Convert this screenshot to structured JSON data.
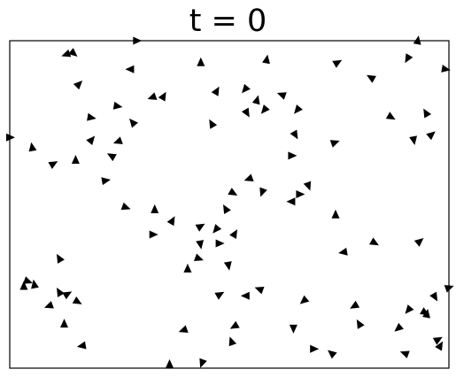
{
  "chart_data": {
    "type": "scatter",
    "title": "t = 0",
    "xlabel": "",
    "ylabel": "",
    "xlim": [
      0,
      1
    ],
    "ylim": [
      0,
      1
    ],
    "ticks": "none",
    "grid": false,
    "marker": "triangle",
    "marker_color": "#000000",
    "frame_color": "#000000",
    "points": [
      {
        "x": 0.129,
        "y": 0.958,
        "angle": 200
      },
      {
        "x": 0.145,
        "y": 0.962,
        "angle": 320
      },
      {
        "x": 0.289,
        "y": 1.0,
        "angle": 0
      },
      {
        "x": 0.435,
        "y": 0.933,
        "angle": 90
      },
      {
        "x": 0.585,
        "y": 0.942,
        "angle": 80
      },
      {
        "x": 0.746,
        "y": 0.933,
        "angle": 30
      },
      {
        "x": 0.929,
        "y": 1.0,
        "angle": 80
      },
      {
        "x": 0.906,
        "y": 0.946,
        "angle": 240
      },
      {
        "x": 0.992,
        "y": 0.913,
        "angle": 350
      },
      {
        "x": 0.823,
        "y": 0.887,
        "angle": 150
      },
      {
        "x": 0.157,
        "y": 0.867,
        "angle": 45
      },
      {
        "x": 0.275,
        "y": 0.913,
        "angle": 180
      },
      {
        "x": 0.325,
        "y": 0.827,
        "angle": 200
      },
      {
        "x": 0.35,
        "y": 0.83,
        "angle": 60
      },
      {
        "x": 0.471,
        "y": 0.846,
        "angle": 60
      },
      {
        "x": 0.536,
        "y": 0.852,
        "angle": 230
      },
      {
        "x": 0.563,
        "y": 0.818,
        "angle": 75
      },
      {
        "x": 0.62,
        "y": 0.835,
        "angle": 160
      },
      {
        "x": 0.54,
        "y": 0.78,
        "angle": 300
      },
      {
        "x": 0.58,
        "y": 0.789,
        "angle": 230
      },
      {
        "x": 0.655,
        "y": 0.789,
        "angle": 230
      },
      {
        "x": 0.245,
        "y": 0.8,
        "angle": 350
      },
      {
        "x": 0.185,
        "y": 0.765,
        "angle": 350
      },
      {
        "x": 0.46,
        "y": 0.746,
        "angle": 120
      },
      {
        "x": 0.868,
        "y": 0.767,
        "angle": 330
      },
      {
        "x": 0.948,
        "y": 0.779,
        "angle": 120
      },
      {
        "x": 0.96,
        "y": 0.713,
        "angle": 40
      },
      {
        "x": 0.92,
        "y": 0.697,
        "angle": 280
      },
      {
        "x": 0.186,
        "y": 0.697,
        "angle": 50
      },
      {
        "x": 0.247,
        "y": 0.692,
        "angle": 200
      },
      {
        "x": 0.051,
        "y": 0.674,
        "angle": 100
      },
      {
        "x": 0.232,
        "y": 0.648,
        "angle": 150
      },
      {
        "x": 0.15,
        "y": 0.635,
        "angle": 90
      },
      {
        "x": 0.099,
        "y": 0.624,
        "angle": 30
      },
      {
        "x": 0.65,
        "y": 0.713,
        "angle": 300
      },
      {
        "x": 0.74,
        "y": 0.689,
        "angle": 20
      },
      {
        "x": 0.642,
        "y": 0.649,
        "angle": 0
      },
      {
        "x": 0.218,
        "y": 0.573,
        "angle": 10
      },
      {
        "x": 0.545,
        "y": 0.578,
        "angle": 200
      },
      {
        "x": 0.575,
        "y": 0.538,
        "angle": 250
      },
      {
        "x": 0.508,
        "y": 0.535,
        "angle": 330
      },
      {
        "x": 0.68,
        "y": 0.557,
        "angle": 290
      },
      {
        "x": 0.642,
        "y": 0.509,
        "angle": 180
      },
      {
        "x": 0.264,
        "y": 0.491,
        "angle": 340
      },
      {
        "x": 0.33,
        "y": 0.484,
        "angle": 90
      },
      {
        "x": 0.326,
        "y": 0.408,
        "angle": 0
      },
      {
        "x": 0.492,
        "y": 0.486,
        "angle": 120
      },
      {
        "x": 0.434,
        "y": 0.433,
        "angle": 30
      },
      {
        "x": 0.47,
        "y": 0.424,
        "angle": 230
      },
      {
        "x": 0.512,
        "y": 0.41,
        "angle": 60
      },
      {
        "x": 0.434,
        "y": 0.379,
        "angle": 280
      },
      {
        "x": 0.477,
        "y": 0.381,
        "angle": 0
      },
      {
        "x": 0.742,
        "y": 0.468,
        "angle": 90
      },
      {
        "x": 0.933,
        "y": 0.387,
        "angle": 40
      },
      {
        "x": 0.83,
        "y": 0.383,
        "angle": 330
      },
      {
        "x": 0.76,
        "y": 0.354,
        "angle": 190
      },
      {
        "x": 0.43,
        "y": 0.335,
        "angle": 340
      },
      {
        "x": 0.405,
        "y": 0.303,
        "angle": 90
      },
      {
        "x": 0.498,
        "y": 0.314,
        "angle": 280
      },
      {
        "x": 0.113,
        "y": 0.335,
        "angle": 120
      },
      {
        "x": 0.041,
        "y": 0.265,
        "angle": 340
      },
      {
        "x": 0.032,
        "y": 0.25,
        "angle": 90
      },
      {
        "x": 0.056,
        "y": 0.255,
        "angle": 100
      },
      {
        "x": 0.113,
        "y": 0.232,
        "angle": 120
      },
      {
        "x": 0.131,
        "y": 0.226,
        "angle": 30
      },
      {
        "x": 0.154,
        "y": 0.203,
        "angle": 330
      },
      {
        "x": 0.09,
        "y": 0.19,
        "angle": 200
      },
      {
        "x": 0.124,
        "y": 0.135,
        "angle": 90
      },
      {
        "x": 0.478,
        "y": 0.225,
        "angle": 30
      },
      {
        "x": 0.538,
        "y": 0.221,
        "angle": 180
      },
      {
        "x": 0.569,
        "y": 0.241,
        "angle": 160
      },
      {
        "x": 0.67,
        "y": 0.206,
        "angle": 220
      },
      {
        "x": 0.785,
        "y": 0.19,
        "angle": 210
      },
      {
        "x": 0.796,
        "y": 0.135,
        "angle": 120
      },
      {
        "x": 0.908,
        "y": 0.178,
        "angle": 230
      },
      {
        "x": 0.945,
        "y": 0.17,
        "angle": 330
      },
      {
        "x": 0.968,
        "y": 0.218,
        "angle": 300
      },
      {
        "x": 0.95,
        "y": 0.165,
        "angle": 80
      },
      {
        "x": 1.0,
        "y": 0.246,
        "angle": 20
      },
      {
        "x": 0.396,
        "y": 0.116,
        "angle": 200
      },
      {
        "x": 0.512,
        "y": 0.128,
        "angle": 210
      },
      {
        "x": 0.505,
        "y": 0.081,
        "angle": 110
      },
      {
        "x": 0.646,
        "y": 0.122,
        "angle": 270
      },
      {
        "x": 0.885,
        "y": 0.122,
        "angle": 220
      },
      {
        "x": 0.975,
        "y": 0.087,
        "angle": 30
      },
      {
        "x": 0.98,
        "y": 0.068,
        "angle": 60
      },
      {
        "x": 0.165,
        "y": 0.068,
        "angle": 190
      },
      {
        "x": 0.692,
        "y": 0.059,
        "angle": 0
      },
      {
        "x": 0.733,
        "y": 0.045,
        "angle": 140
      },
      {
        "x": 0.9,
        "y": 0.045,
        "angle": 160
      },
      {
        "x": 0.364,
        "y": 0.011,
        "angle": 90
      },
      {
        "x": 0.438,
        "y": 0.016,
        "angle": 250
      },
      {
        "x": 0.0,
        "y": 0.705,
        "angle": 0
      },
      {
        "x": 0.66,
        "y": 0.531,
        "angle": 0
      },
      {
        "x": 0.28,
        "y": 0.75,
        "angle": 130
      },
      {
        "x": 0.37,
        "y": 0.45,
        "angle": 60
      }
    ]
  }
}
